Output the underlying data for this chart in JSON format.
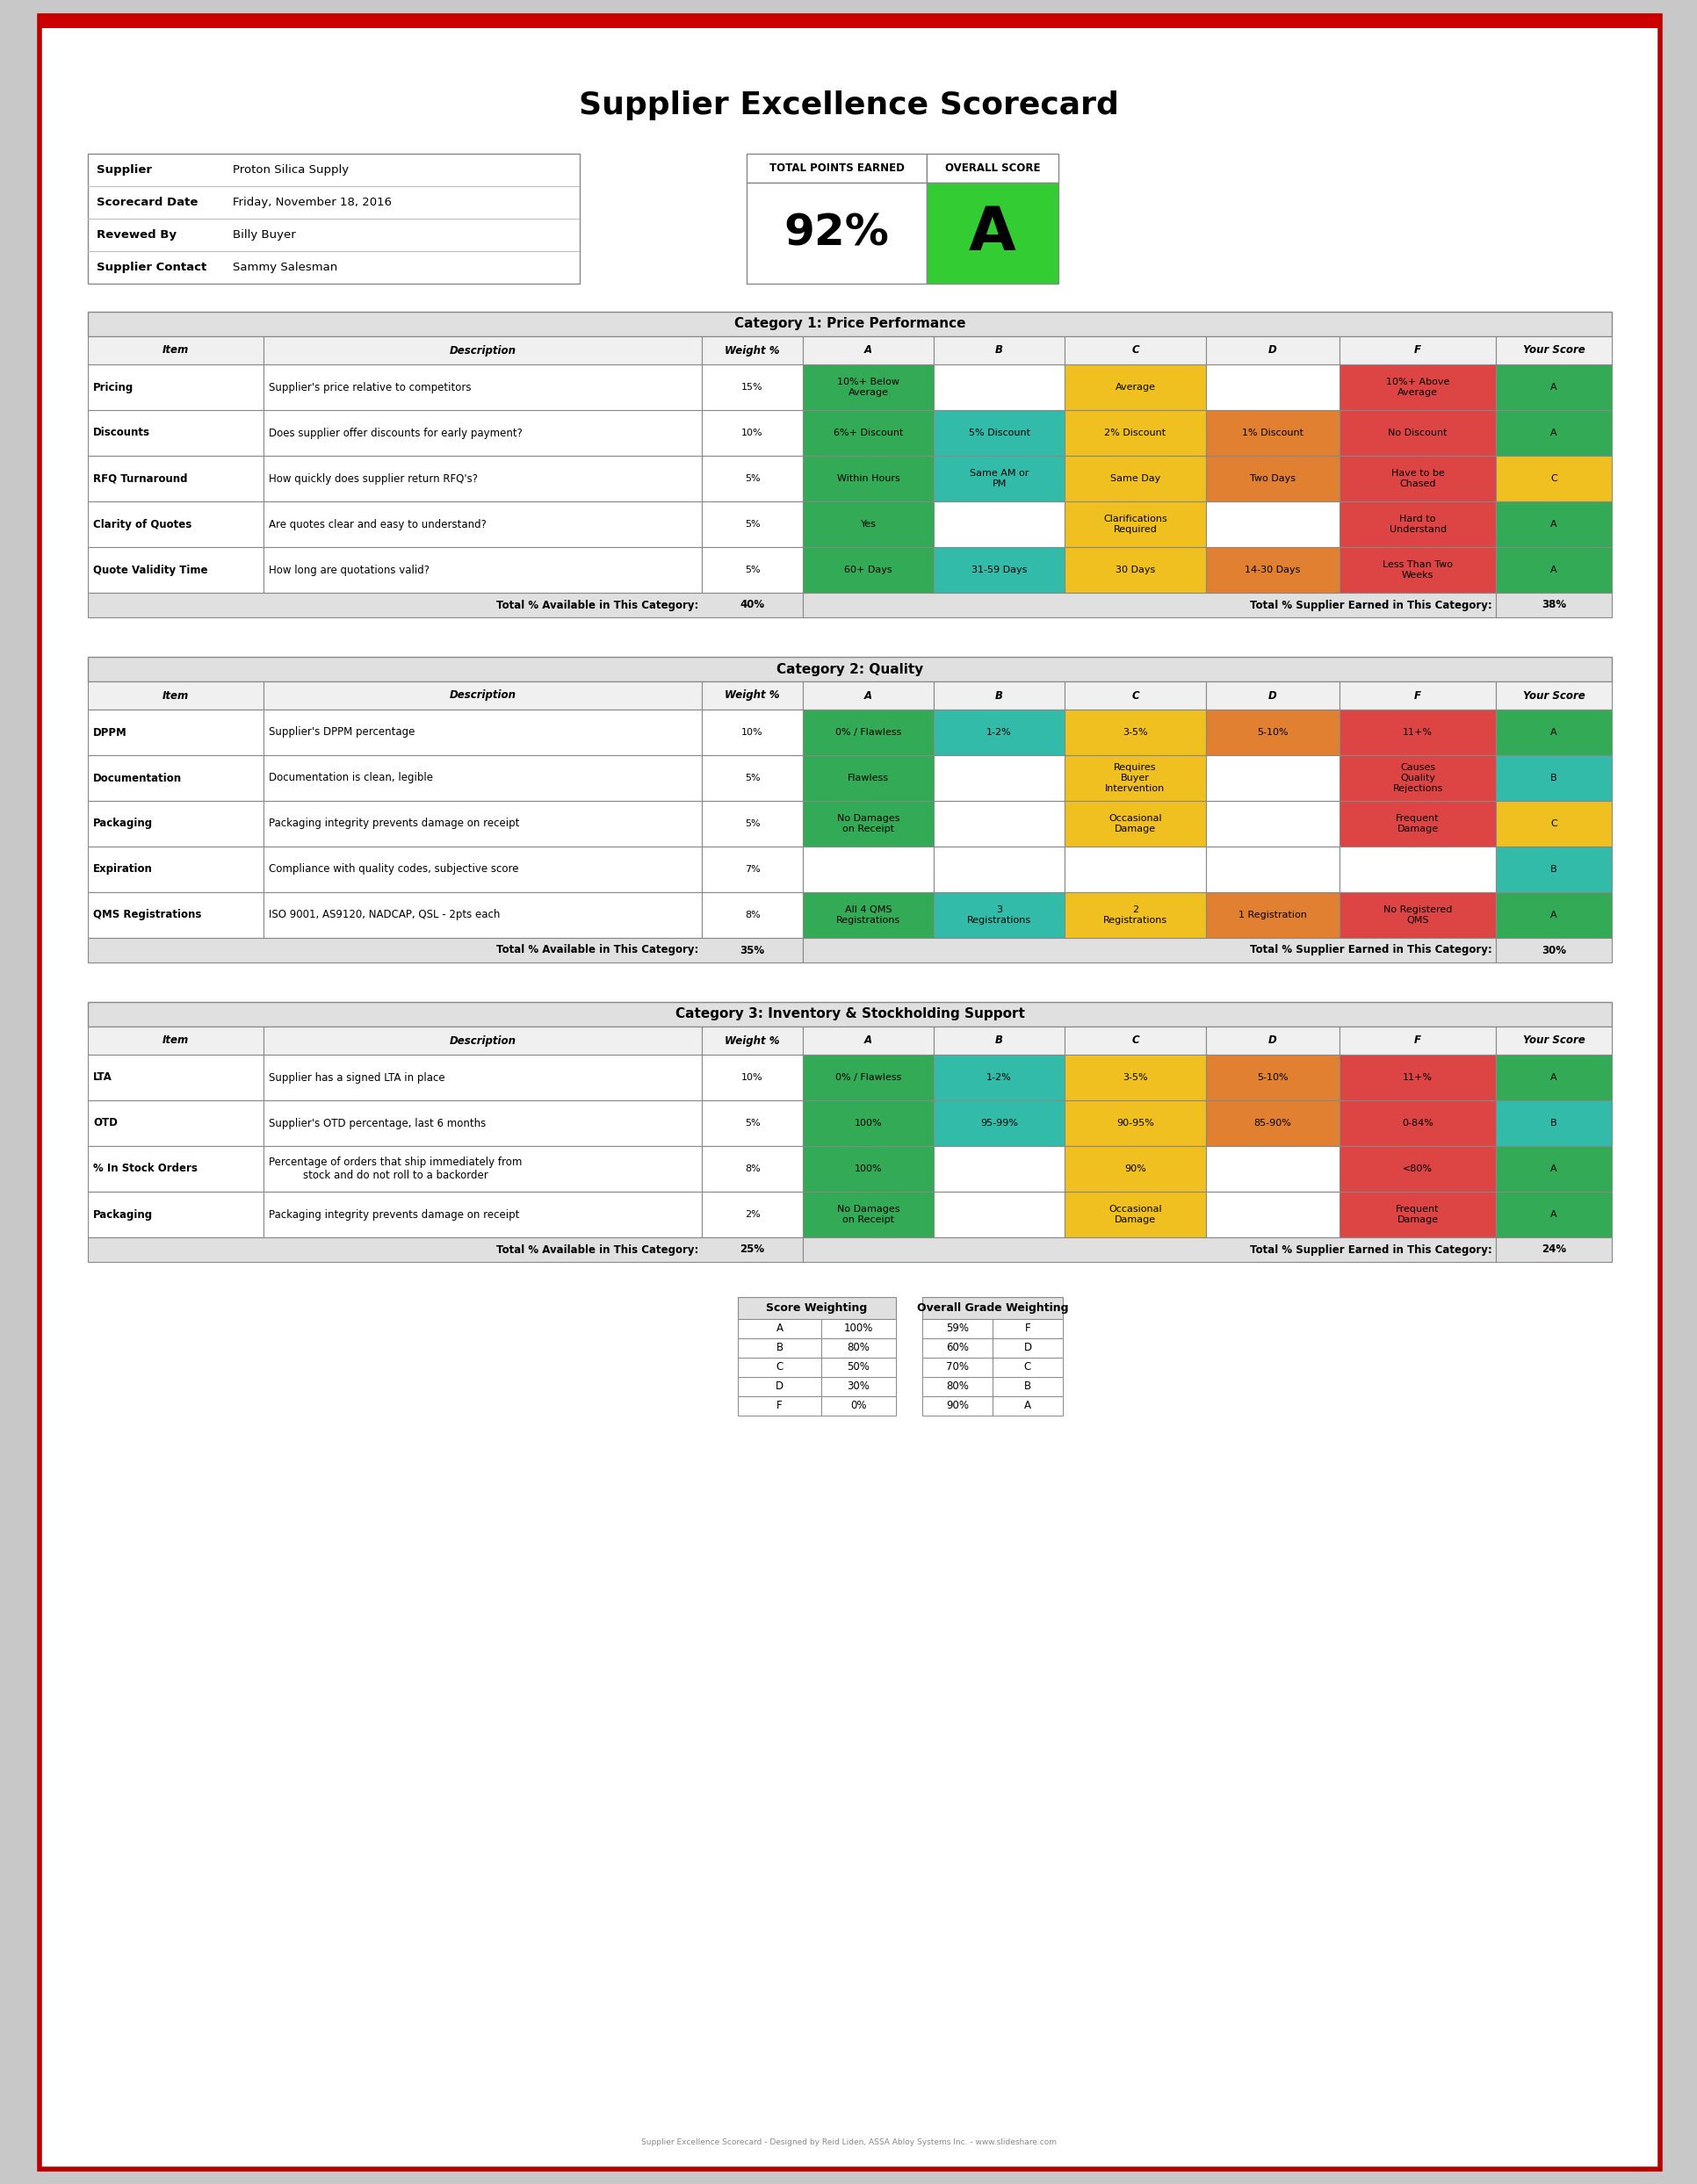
{
  "title": "Supplier Excellence Scorecard",
  "supplier": "Proton Silica Supply",
  "scorecard_date": "Friday, November 18, 2016",
  "reviewed_by": "Billy Buyer",
  "supplier_contact": "Sammy Salesman",
  "total_points": "92%",
  "overall_score": "A",
  "overall_score_bg": "#33cc33",
  "colors": {
    "A": "#33aa55",
    "B": "#33bbaa",
    "C": "#f0c020",
    "D": "#e08030",
    "F": "#dd4444",
    "header_bg": "#e0e0e0",
    "border": "#999999"
  },
  "info_labels": [
    "Supplier",
    "Scorecard Date",
    "Revewed By",
    "Supplier Contact"
  ],
  "info_values": [
    "Proton Silica Supply",
    "Friday, November 18, 2016",
    "Billy Buyer",
    "Sammy Salesman"
  ],
  "cat1_title": "Category 1: Price Performance",
  "cat1_rows": [
    [
      "Pricing",
      "Supplier's price relative to competitors",
      "15%",
      "10%+ Below\nAverage",
      "",
      "Average",
      "",
      "10%+ Above\nAverage",
      "A"
    ],
    [
      "Discounts",
      "Does supplier offer discounts for early payment?",
      "10%",
      "6%+ Discount",
      "5% Discount",
      "2% Discount",
      "1% Discount",
      "No Discount",
      "A"
    ],
    [
      "RFQ Turnaround",
      "How quickly does supplier return RFQ's?",
      "5%",
      "Within Hours",
      "Same AM or\nPM",
      "Same Day",
      "Two Days",
      "Have to be\nChased",
      "C"
    ],
    [
      "Clarity of Quotes",
      "Are quotes clear and easy to understand?",
      "5%",
      "Yes",
      "",
      "Clarifications\nRequired",
      "",
      "Hard to\nUnderstand",
      "A"
    ],
    [
      "Quote Validity Time",
      "How long are quotations valid?",
      "5%",
      "60+ Days",
      "31-59 Days",
      "30 Days",
      "14-30 Days",
      "Less Than Two\nWeeks",
      "A"
    ]
  ],
  "cat1_total_avail": "40%",
  "cat1_total_earned": "38%",
  "cat1_row_colors": [
    [
      "A",
      "",
      "C",
      "",
      "F",
      "A"
    ],
    [
      "A",
      "B",
      "C",
      "D",
      "F",
      "A"
    ],
    [
      "A",
      "B",
      "C",
      "D",
      "F",
      "C"
    ],
    [
      "A",
      "",
      "C",
      "",
      "F",
      "A"
    ],
    [
      "A",
      "B",
      "C",
      "D",
      "F",
      "A"
    ]
  ],
  "cat2_title": "Category 2: Quality",
  "cat2_rows": [
    [
      "DPPM",
      "Supplier's DPPM percentage",
      "10%",
      "0% / Flawless",
      "1-2%",
      "3-5%",
      "5-10%",
      "11+%",
      "A"
    ],
    [
      "Documentation",
      "Documentation is clean, legible",
      "5%",
      "Flawless",
      "",
      "Requires\nBuyer\nIntervention",
      "",
      "Causes\nQuality\nRejections",
      "B"
    ],
    [
      "Packaging",
      "Packaging integrity prevents damage on receipt",
      "5%",
      "No Damages\non Receipt",
      "",
      "Occasional\nDamage",
      "",
      "Frequent\nDamage",
      "C"
    ],
    [
      "Expiration",
      "Compliance with quality codes, subjective score",
      "7%",
      "",
      "",
      "",
      "",
      "",
      "B"
    ],
    [
      "QMS Registrations",
      "ISO 9001, AS9120, NADCAP, QSL - 2pts each",
      "8%",
      "All 4 QMS\nRegistrations",
      "3\nRegistrations",
      "2\nRegistrations",
      "1 Registration",
      "No Registered\nQMS",
      "A"
    ]
  ],
  "cat2_total_avail": "35%",
  "cat2_total_earned": "30%",
  "cat2_row_colors": [
    [
      "A",
      "B",
      "C",
      "D",
      "F",
      "A"
    ],
    [
      "A",
      "",
      "C",
      "",
      "F",
      "B"
    ],
    [
      "A",
      "",
      "C",
      "",
      "F",
      "C"
    ],
    [
      "",
      "",
      "",
      "",
      "",
      "B"
    ],
    [
      "A",
      "B",
      "C",
      "D",
      "F",
      "A"
    ]
  ],
  "cat3_title": "Category 3: Inventory & Stockholding Support",
  "cat3_rows": [
    [
      "LTA",
      "Supplier has a signed LTA in place",
      "10%",
      "0% / Flawless",
      "1-2%",
      "3-5%",
      "5-10%",
      "11+%",
      "A"
    ],
    [
      "OTD",
      "Supplier's OTD percentage, last 6 months",
      "5%",
      "100%",
      "95-99%",
      "90-95%",
      "85-90%",
      "0-84%",
      "B"
    ],
    [
      "% In Stock Orders",
      "Percentage of orders that ship immediately from\nstock and do not roll to a backorder",
      "8%",
      "100%",
      "",
      "90%",
      "",
      "<80%",
      "A"
    ],
    [
      "Packaging",
      "Packaging integrity prevents damage on receipt",
      "2%",
      "No Damages\non Receipt",
      "",
      "Occasional\nDamage",
      "",
      "Frequent\nDamage",
      "A"
    ]
  ],
  "cat3_total_avail": "25%",
  "cat3_total_earned": "24%",
  "cat3_row_colors": [
    [
      "A",
      "B",
      "C",
      "D",
      "F",
      "A"
    ],
    [
      "A",
      "B",
      "C",
      "D",
      "F",
      "B"
    ],
    [
      "A",
      "",
      "C",
      "",
      "F",
      "A"
    ],
    [
      "A",
      "",
      "C",
      "",
      "F",
      "A"
    ]
  ],
  "score_weighting": [
    [
      "A",
      "100%"
    ],
    [
      "B",
      "80%"
    ],
    [
      "C",
      "50%"
    ],
    [
      "D",
      "30%"
    ],
    [
      "F",
      "0%"
    ]
  ],
  "grade_weighting": [
    [
      "59%",
      "F"
    ],
    [
      "60%",
      "D"
    ],
    [
      "70%",
      "C"
    ],
    [
      "80%",
      "B"
    ],
    [
      "90%",
      "A"
    ]
  ],
  "footer": "Supplier Excellence Scorecard - Designed by Reid Liden, ASSA Abloy Systems Inc. - www.slideshare.com"
}
